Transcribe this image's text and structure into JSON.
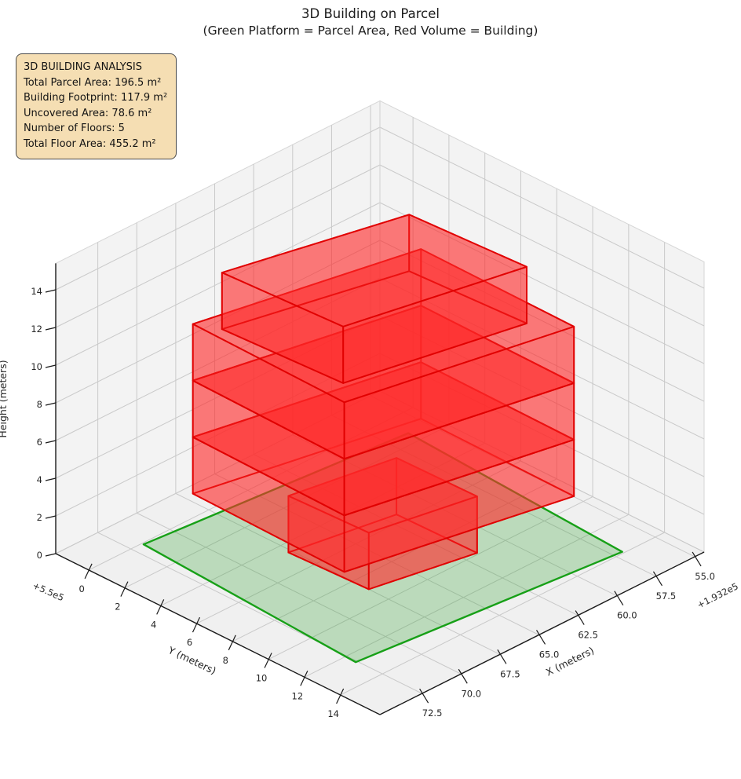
{
  "title": {
    "line1": "3D Building on Parcel",
    "line2": "(Green Platform = Parcel Area, Red Volume = Building)"
  },
  "info_box": {
    "lines": [
      "3D BUILDING ANALYSIS",
      "Total Parcel Area: 196.5 m²",
      "Building Footprint: 117.9 m²",
      "Uncovered Area: 78.6 m²",
      "Number of Floors: 5",
      "Total Floor Area: 455.2 m²"
    ]
  },
  "colors": {
    "parcel_fill": "#2ca02c",
    "parcel_edge": "#17a017",
    "building_fill": "#ff2a2a",
    "building_edge": "#e00000",
    "wall_pane": "#f3f3f3",
    "floor_pane": "#f0f0f0",
    "grid": "#c9c9c9",
    "pane_edge": "#d6d6d6",
    "axis_line": "#1a1a1a",
    "tick_text": "#262626",
    "infobox_bg": "#f5deb3"
  },
  "chart_data": {
    "type": "3d-building-plot",
    "projection": "matplotlib-3d-view",
    "axes": {
      "x": {
        "label": "X (meters)",
        "offset_text": "+1.932e5",
        "tick_labels": [
          "55.0",
          "57.5",
          "60.0",
          "62.5",
          "65.0",
          "67.5",
          "70.0",
          "72.5"
        ],
        "tick_values": [
          55.0,
          57.5,
          60.0,
          62.5,
          65.0,
          67.5,
          70.0,
          72.5
        ],
        "range": [
          54.4,
          75.2
        ]
      },
      "y": {
        "label": "Y (meters)",
        "offset_text": "+5.5e5",
        "tick_labels": [
          "0",
          "2",
          "4",
          "6",
          "8",
          "10",
          "12",
          "14"
        ],
        "tick_values": [
          0,
          2,
          4,
          6,
          8,
          10,
          12,
          14
        ],
        "range": [
          -1.84,
          16.2
        ]
      },
      "z": {
        "label": "Height (meters)",
        "tick_labels": [
          "0",
          "2",
          "4",
          "6",
          "8",
          "10",
          "12",
          "14"
        ],
        "tick_values": [
          0,
          2,
          4,
          6,
          8,
          10,
          12,
          14
        ],
        "range": [
          0,
          15.4
        ]
      }
    },
    "parcel": {
      "name": "parcel-platform",
      "z": 0,
      "polygon_xy": [
        [
          71.8,
          0.1
        ],
        [
          72.6,
          12.6
        ],
        [
          57.0,
          13.9
        ],
        [
          56.2,
          1.3
        ]
      ],
      "area_label": "196.5 m²"
    },
    "building": {
      "footprint_area_label": "117.9 m²",
      "num_floors": 5,
      "floor_height_m": 3,
      "blocks": [
        {
          "name": "floor-1",
          "z0": 0,
          "z1": 3,
          "footprint": [
            [
              67.7,
              4.6
            ],
            [
              67.5,
              8.9
            ],
            [
              61.7,
              9.9
            ],
            [
              61.8,
              5.5
            ]
          ]
        },
        {
          "name": "floor-2",
          "z0": 3,
          "z1": 6,
          "footprint": [
            [
              70.6,
              1.8
            ],
            [
              70.8,
              10.4
            ],
            [
              58.6,
              12.6
            ],
            [
              58.5,
              4.0
            ]
          ]
        },
        {
          "name": "floor-3",
          "z0": 6,
          "z1": 9,
          "footprint": [
            [
              70.6,
              1.8
            ],
            [
              70.8,
              10.4
            ],
            [
              58.6,
              12.6
            ],
            [
              58.5,
              4.0
            ]
          ]
        },
        {
          "name": "floor-4",
          "z0": 9,
          "z1": 12,
          "footprint": [
            [
              70.6,
              1.8
            ],
            [
              70.8,
              10.4
            ],
            [
              58.6,
              12.6
            ],
            [
              58.5,
              4.0
            ]
          ]
        },
        {
          "name": "floor-5",
          "z0": 12,
          "z1": 15,
          "footprint": [
            [
              70.0,
              2.9
            ],
            [
              69.6,
              9.3
            ],
            [
              59.9,
              11.1
            ],
            [
              60.3,
              4.9
            ]
          ]
        }
      ]
    }
  }
}
